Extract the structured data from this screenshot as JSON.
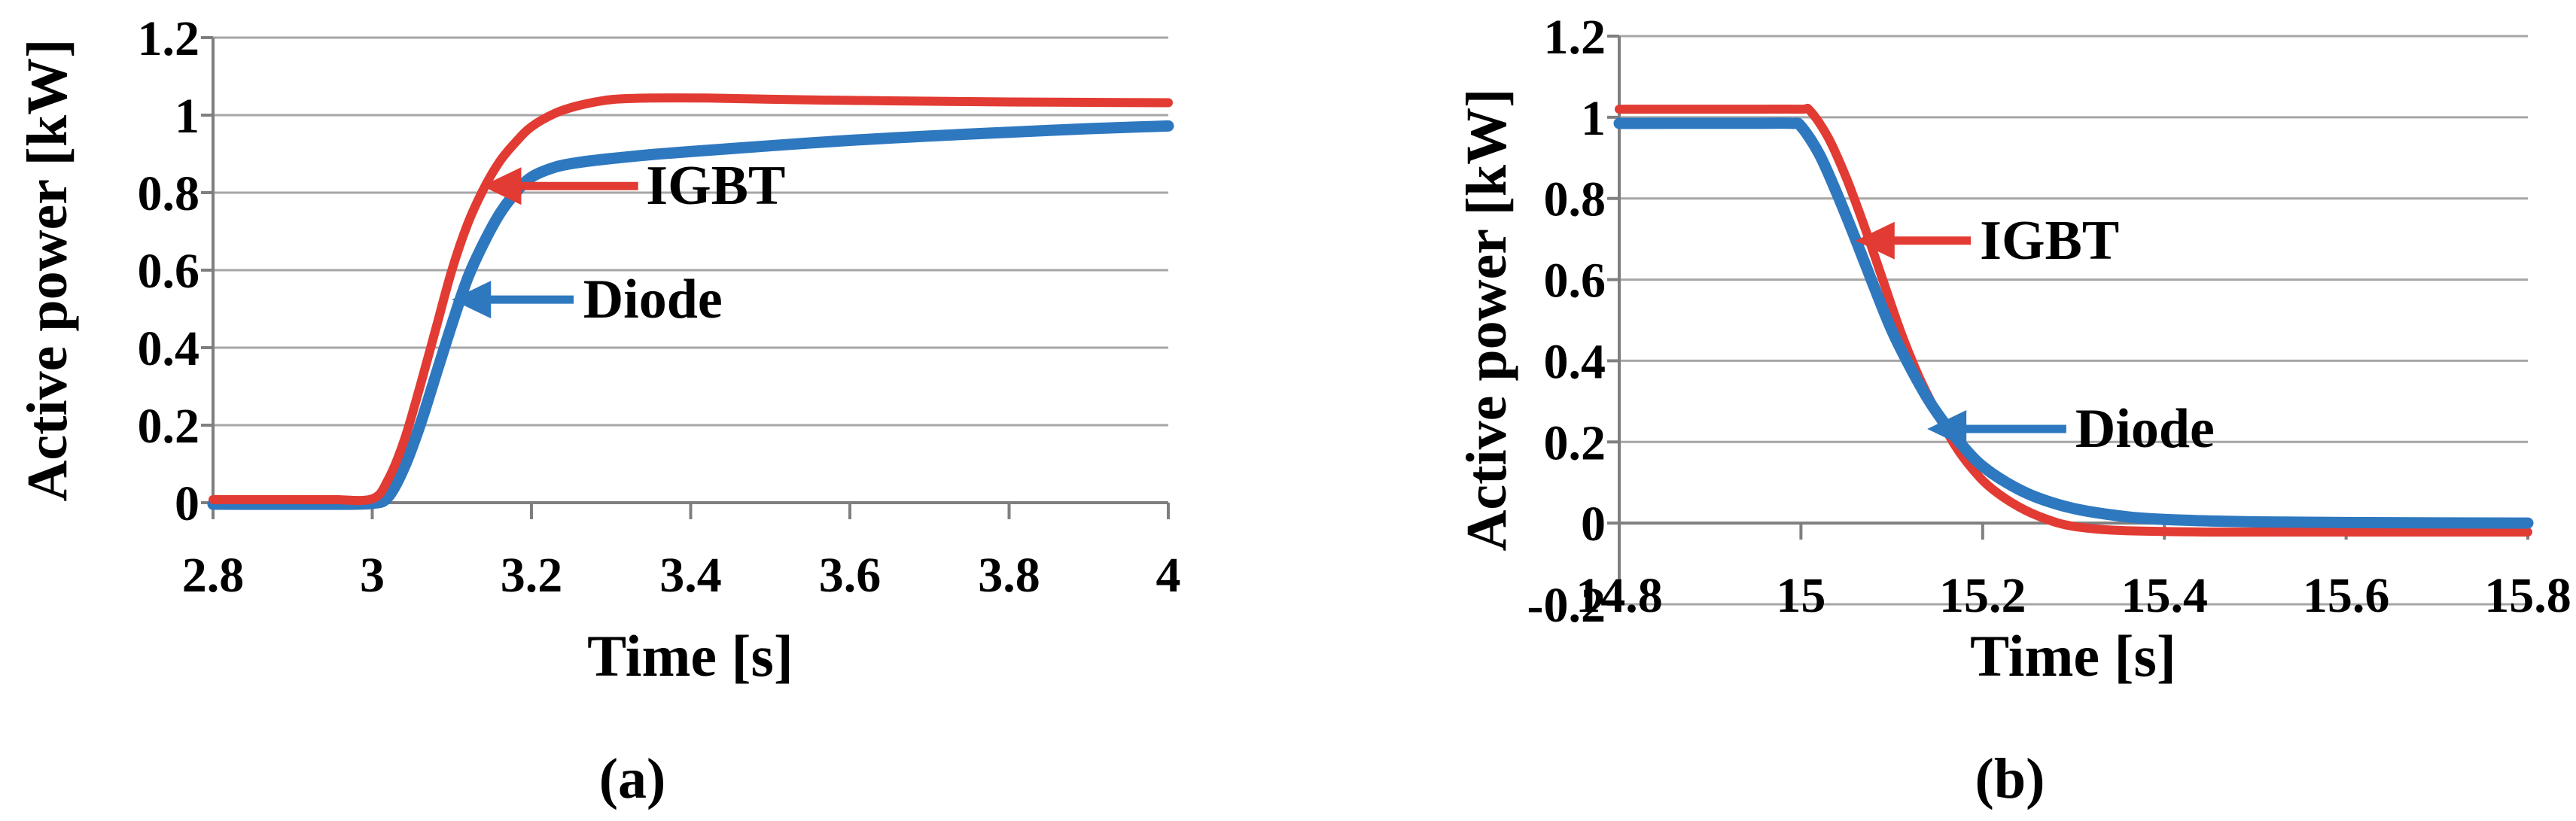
{
  "figure": {
    "background": "#ffffff"
  },
  "colors": {
    "igbt": "#E23B33",
    "diode": "#2E78BF",
    "grid": "#A6A6A6",
    "axis": "#7F7F7F",
    "text": "#000000"
  },
  "chart_data": [
    {
      "id": "a",
      "type": "line",
      "caption": "(a)",
      "xlabel": "Time [s]",
      "ylabel": "Active power [kW]",
      "xlim": [
        2.8,
        4.0
      ],
      "ylim": [
        0,
        1.2
      ],
      "grid": "horizontal",
      "legend_position": "none",
      "x_ticks": {
        "values": [
          2.8,
          3.0,
          3.2,
          3.4,
          3.6,
          3.8,
          4.0
        ],
        "labels": [
          "2.8",
          "3",
          "3.2",
          "3.4",
          "3.6",
          "3.8",
          "4"
        ]
      },
      "y_ticks": {
        "values": [
          0,
          0.2,
          0.4,
          0.6,
          0.8,
          1.0,
          1.2
        ],
        "labels": [
          "0",
          "0.2",
          "0.4",
          "0.6",
          "0.8",
          "1",
          "1.2"
        ]
      },
      "series": [
        {
          "name": "Diode",
          "color_key": "diode",
          "width": 15,
          "points": [
            [
              2.8,
              -0.004
            ],
            [
              2.85,
              -0.004
            ],
            [
              2.9,
              -0.004
            ],
            [
              2.95,
              -0.004
            ],
            [
              3.0,
              -0.002
            ],
            [
              3.02,
              0.015
            ],
            [
              3.04,
              0.09
            ],
            [
              3.06,
              0.2
            ],
            [
              3.08,
              0.33
            ],
            [
              3.1,
              0.46
            ],
            [
              3.12,
              0.58
            ],
            [
              3.14,
              0.67
            ],
            [
              3.16,
              0.745
            ],
            [
              3.18,
              0.8
            ],
            [
              3.2,
              0.84
            ],
            [
              3.23,
              0.866
            ],
            [
              3.26,
              0.878
            ],
            [
              3.3,
              0.888
            ],
            [
              3.35,
              0.898
            ],
            [
              3.4,
              0.906
            ],
            [
              3.5,
              0.921
            ],
            [
              3.6,
              0.935
            ],
            [
              3.7,
              0.946
            ],
            [
              3.8,
              0.956
            ],
            [
              3.9,
              0.965
            ],
            [
              4.0,
              0.972
            ]
          ]
        },
        {
          "name": "IGBT",
          "color_key": "igbt",
          "width": 12,
          "points": [
            [
              2.8,
              0.008
            ],
            [
              2.85,
              0.008
            ],
            [
              2.9,
              0.008
            ],
            [
              2.95,
              0.008
            ],
            [
              3.0,
              0.01
            ],
            [
              3.02,
              0.06
            ],
            [
              3.04,
              0.16
            ],
            [
              3.06,
              0.3
            ],
            [
              3.08,
              0.45
            ],
            [
              3.1,
              0.6
            ],
            [
              3.12,
              0.72
            ],
            [
              3.14,
              0.81
            ],
            [
              3.16,
              0.88
            ],
            [
              3.18,
              0.93
            ],
            [
              3.2,
              0.97
            ],
            [
              3.23,
              1.005
            ],
            [
              3.26,
              1.025
            ],
            [
              3.3,
              1.04
            ],
            [
              3.35,
              1.044
            ],
            [
              3.42,
              1.044
            ],
            [
              3.5,
              1.041
            ],
            [
              3.6,
              1.038
            ],
            [
              3.7,
              1.036
            ],
            [
              3.8,
              1.034
            ],
            [
              3.9,
              1.033
            ],
            [
              4.0,
              1.032
            ]
          ]
        }
      ],
      "annotations": [
        {
          "label": "IGBT",
          "color_key": "igbt",
          "arrow_from": [
            3.334,
            0.817
          ],
          "arrow_to": [
            3.138,
            0.817
          ],
          "label_pos": [
            3.344,
            0.817
          ]
        },
        {
          "label": "Diode",
          "color_key": "diode",
          "arrow_from": [
            3.253,
            0.524
          ],
          "arrow_to": [
            3.1,
            0.524
          ],
          "label_pos": [
            3.265,
            0.524
          ]
        }
      ]
    },
    {
      "id": "b",
      "type": "line",
      "caption": "(b)",
      "xlabel": "Time [s]",
      "ylabel": "Active power [kW]",
      "xlim": [
        14.8,
        15.8
      ],
      "ylim": [
        -0.2,
        1.2
      ],
      "grid": "horizontal",
      "legend_position": "none",
      "x_ticks": {
        "values": [
          14.8,
          15.0,
          15.2,
          15.4,
          15.6,
          15.8
        ],
        "labels": [
          "14.8",
          "15",
          "15.2",
          "15.4",
          "15.6",
          "15.8"
        ]
      },
      "y_ticks": {
        "values": [
          -0.2,
          0,
          0.2,
          0.4,
          0.6,
          0.8,
          1.0,
          1.2
        ],
        "labels": [
          "-0.2",
          "0",
          "0.2",
          "0.4",
          "0.6",
          "0.8",
          "1",
          "1.2"
        ]
      },
      "series": [
        {
          "name": "IGBT",
          "color_key": "igbt",
          "width": 12,
          "points": [
            [
              14.8,
              1.02
            ],
            [
              14.9,
              1.02
            ],
            [
              14.95,
              1.02
            ],
            [
              15.0,
              1.02
            ],
            [
              15.01,
              1.016
            ],
            [
              15.03,
              0.95
            ],
            [
              15.05,
              0.85
            ],
            [
              15.07,
              0.73
            ],
            [
              15.09,
              0.6
            ],
            [
              15.11,
              0.47
            ],
            [
              15.13,
              0.36
            ],
            [
              15.15,
              0.27
            ],
            [
              15.17,
              0.19
            ],
            [
              15.19,
              0.13
            ],
            [
              15.21,
              0.085
            ],
            [
              15.24,
              0.04
            ],
            [
              15.27,
              0.01
            ],
            [
              15.3,
              -0.008
            ],
            [
              15.35,
              -0.018
            ],
            [
              15.45,
              -0.022
            ],
            [
              15.6,
              -0.022
            ],
            [
              15.8,
              -0.022
            ]
          ]
        },
        {
          "name": "Diode",
          "color_key": "diode",
          "width": 15,
          "points": [
            [
              14.8,
              0.985
            ],
            [
              14.9,
              0.985
            ],
            [
              14.95,
              0.985
            ],
            [
              14.99,
              0.985
            ],
            [
              15.0,
              0.978
            ],
            [
              15.02,
              0.91
            ],
            [
              15.04,
              0.81
            ],
            [
              15.06,
              0.7
            ],
            [
              15.08,
              0.585
            ],
            [
              15.1,
              0.475
            ],
            [
              15.12,
              0.385
            ],
            [
              15.14,
              0.305
            ],
            [
              15.16,
              0.24
            ],
            [
              15.18,
              0.185
            ],
            [
              15.2,
              0.14
            ],
            [
              15.23,
              0.095
            ],
            [
              15.26,
              0.063
            ],
            [
              15.3,
              0.036
            ],
            [
              15.35,
              0.018
            ],
            [
              15.4,
              0.009
            ],
            [
              15.5,
              0.003
            ],
            [
              15.65,
              0.001
            ],
            [
              15.8,
              0.0
            ]
          ]
        }
      ],
      "annotations": [
        {
          "label": "IGBT",
          "color_key": "igbt",
          "arrow_from": [
            15.187,
            0.696
          ],
          "arrow_to": [
            15.06,
            0.696
          ],
          "label_pos": [
            15.197,
            0.696
          ]
        },
        {
          "label": "Diode",
          "color_key": "diode",
          "arrow_from": [
            15.292,
            0.232
          ],
          "arrow_to": [
            15.139,
            0.232
          ],
          "label_pos": [
            15.302,
            0.232
          ]
        }
      ]
    }
  ]
}
